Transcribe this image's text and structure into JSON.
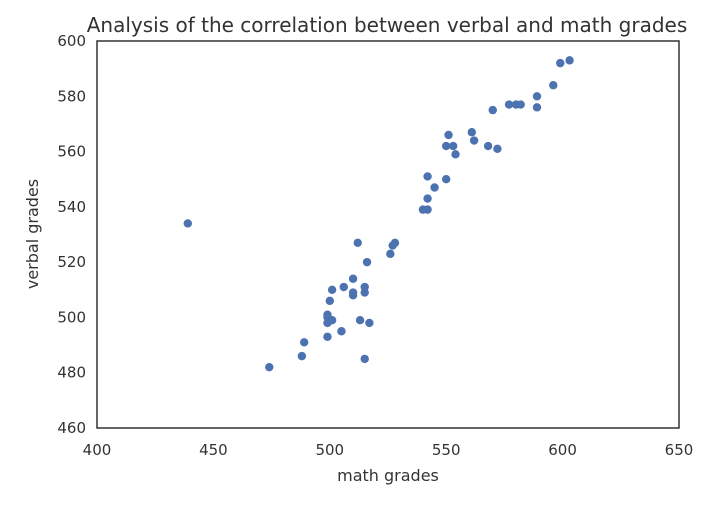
{
  "chart_data": {
    "type": "scatter",
    "title": "Analysis of the correlation between verbal and math grades",
    "xlabel": "math grades",
    "ylabel": "verbal grades",
    "xlim": [
      400,
      650
    ],
    "ylim": [
      460,
      600
    ],
    "xticks": [
      400,
      450,
      500,
      550,
      600,
      650
    ],
    "yticks": [
      460,
      480,
      500,
      520,
      540,
      560,
      580,
      600
    ],
    "grid": false,
    "marker_color": "#4c72b0",
    "series": [
      {
        "x": [
          439,
          474,
          488,
          489,
          499,
          499,
          499,
          499,
          500,
          501,
          501,
          505,
          506,
          510,
          510,
          510,
          512,
          513,
          515,
          515,
          515,
          516,
          517,
          526,
          527,
          528,
          540,
          542,
          542,
          542,
          545,
          550,
          550,
          551,
          553,
          554,
          561,
          562,
          568,
          570,
          572,
          577,
          580,
          582,
          589,
          589,
          596,
          599,
          603
        ],
        "y": [
          534,
          482,
          486,
          491,
          493,
          498,
          500,
          501,
          506,
          499,
          510,
          495,
          511,
          508,
          509,
          514,
          527,
          499,
          485,
          509,
          511,
          520,
          498,
          523,
          526,
          527,
          539,
          539,
          543,
          551,
          547,
          550,
          562,
          566,
          562,
          559,
          567,
          564,
          562,
          575,
          561,
          577,
          577,
          577,
          576,
          580,
          584,
          592,
          593
        ]
      }
    ]
  }
}
